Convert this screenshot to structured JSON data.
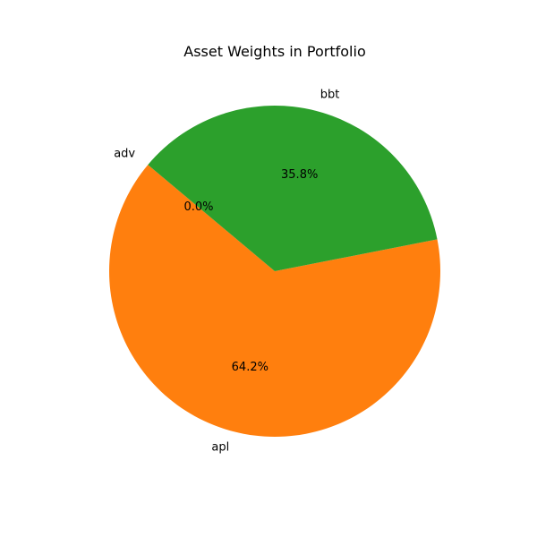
{
  "chart_data": {
    "type": "pie",
    "title": "Asset Weights in Portfolio",
    "categories": [
      "adv",
      "apl",
      "bbt"
    ],
    "values": [
      0.0,
      64.2,
      35.8
    ],
    "percent_labels": [
      "0.0%",
      "64.2%",
      "35.8%"
    ],
    "colors": [
      "#1f77b4",
      "#ff7f0e",
      "#2ca02c"
    ],
    "start_angle_deg": 140,
    "direction": "counterclockwise",
    "legend": "none"
  }
}
